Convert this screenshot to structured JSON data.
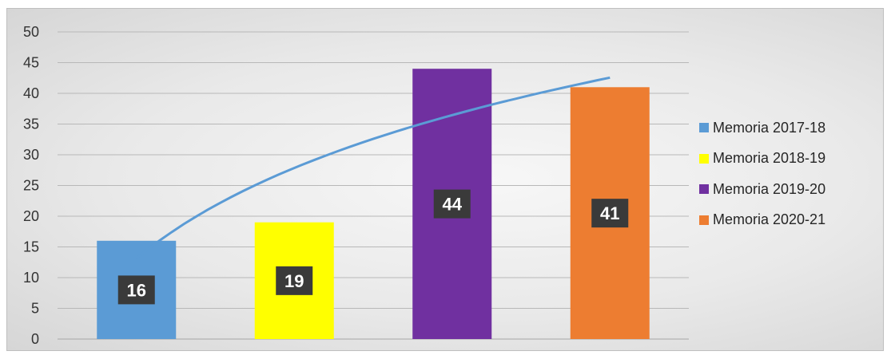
{
  "chart_data": {
    "type": "bar",
    "categories": [
      "Memoria 2017-18",
      "Memoria 2018-19",
      "Memoria 2019-20",
      "Memoria 2020-21"
    ],
    "values": [
      16,
      19,
      44,
      41
    ],
    "data_labels": [
      "16",
      "19",
      "44",
      "41"
    ],
    "colors": [
      "#5b9bd5",
      "#ffff00",
      "#7030a0",
      "#ed7d31"
    ],
    "trendline": {
      "type": "logarithmic",
      "color": "#5b9bd5"
    },
    "ylim": [
      0,
      50
    ],
    "yticks": [
      "0",
      "5",
      "10",
      "15",
      "20",
      "25",
      "30",
      "35",
      "40",
      "45",
      "50"
    ],
    "grid": true,
    "legend_position": "right",
    "title": "",
    "xlabel": "",
    "ylabel": ""
  }
}
